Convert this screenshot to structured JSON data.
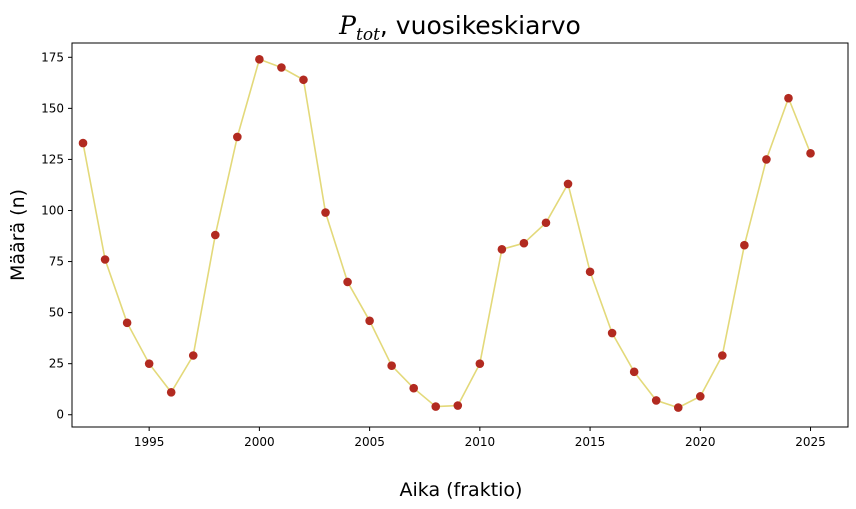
{
  "chart_data": {
    "type": "line",
    "title_main": "P",
    "title_sub": "tot",
    "title_rest": ", vuosikeskiarvo",
    "xlabel": "Aika (fraktio)",
    "ylabel": "Määrä (n)",
    "xlim": [
      1991.5,
      2026.7
    ],
    "ylim": [
      -6,
      182
    ],
    "x_ticks": [
      1995,
      2000,
      2005,
      2010,
      2015,
      2020,
      2025
    ],
    "y_ticks": [
      0,
      25,
      50,
      75,
      100,
      125,
      150,
      175
    ],
    "grid": false,
    "line_color": "#e3d97a",
    "marker_color": "#b22a20",
    "series": [
      {
        "x": [
          1992,
          1993,
          1994,
          1995,
          1996,
          1997,
          1998,
          1999,
          2000,
          2001,
          2002,
          2003,
          2004,
          2005,
          2006,
          2007,
          2008,
          2009,
          2010,
          2011,
          2012,
          2013,
          2014,
          2015,
          2016,
          2017,
          2018,
          2019,
          2020,
          2021,
          2022,
          2023,
          2024,
          2025
        ],
        "values": [
          133,
          76,
          45,
          25,
          11,
          29,
          88,
          136,
          174,
          170,
          164,
          99,
          65,
          46,
          24,
          13,
          4,
          4.5,
          25,
          81,
          84,
          94,
          113,
          70,
          40,
          21,
          7,
          3.5,
          9,
          29,
          83,
          125,
          155,
          128
        ]
      }
    ]
  }
}
